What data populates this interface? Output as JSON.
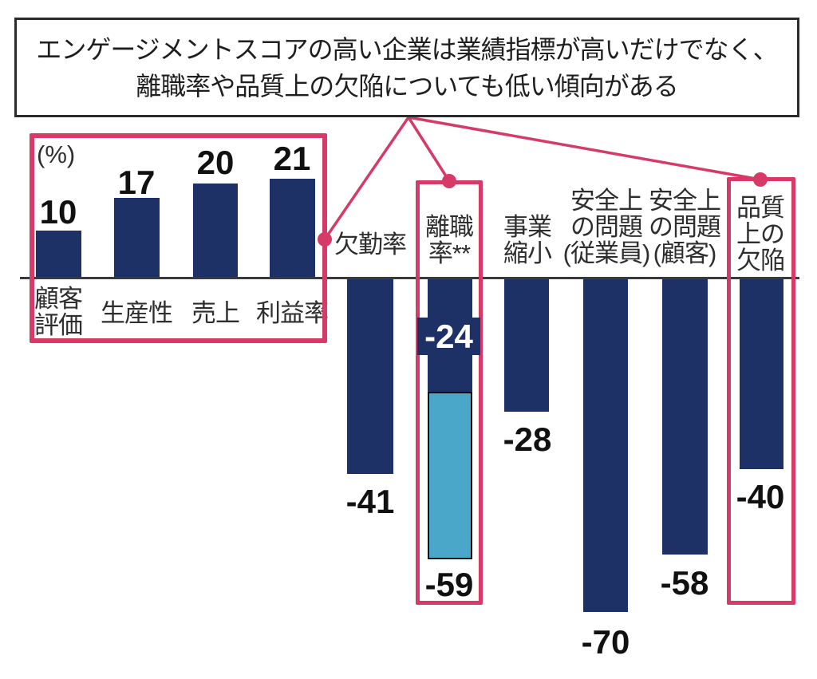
{
  "title": {
    "lines": [
      "エンゲージメントスコアの高い企業は業績指標が高いだけでなく、",
      "離職率や品質上の欠陥についても低い傾向がある"
    ]
  },
  "chart_data": {
    "type": "bar",
    "title": "エンゲージメントスコアの高い企業は業績指標が高いだけでなく、離職率や品質上の欠陥についても低い傾向がある",
    "unit_label": "(%)",
    "ylim": [
      -70,
      21
    ],
    "baseline": 0,
    "grid": false,
    "legend": "none",
    "positive_bars": [
      {
        "label": "顧客評価",
        "label_lines": [
          "顧客",
          "評価"
        ],
        "value": 10,
        "value_label": "10"
      },
      {
        "label": "生産性",
        "label_lines": [
          "生産性"
        ],
        "value": 17,
        "value_label": "17"
      },
      {
        "label": "売上",
        "label_lines": [
          "売上"
        ],
        "value": 20,
        "value_label": "20"
      },
      {
        "label": "利益率",
        "label_lines": [
          "利益率"
        ],
        "value": 21,
        "value_label": "21"
      }
    ],
    "negative_bars": [
      {
        "label": "欠勤率",
        "label_lines": [
          "欠勤率"
        ],
        "value": -41,
        "value_label": "-41"
      },
      {
        "label": "離職率**",
        "label_lines": [
          "離職",
          "率**"
        ],
        "value": -59,
        "value_label": "-59",
        "stacked_segment": {
          "value": -24,
          "value_label": "-24"
        }
      },
      {
        "label": "事業縮小",
        "label_lines": [
          "事業",
          "縮小"
        ],
        "value": -28,
        "value_label": "-28"
      },
      {
        "label": "安全上の問題(従業員)",
        "label_lines": [
          "安全上",
          "の問題",
          "(従業員)"
        ],
        "value": -70,
        "value_label": "-70"
      },
      {
        "label": "安全上の問題(顧客)",
        "label_lines": [
          "安全上",
          "の問題",
          "(顧客)"
        ],
        "value": -58,
        "value_label": "-58"
      },
      {
        "label": "品質上の欠陥",
        "label_lines": [
          "品質",
          "上の",
          "欠陥"
        ],
        "value": -40,
        "value_label": "-40"
      }
    ],
    "highlighted": [
      "業績指標グループ(顧客評価・生産性・売上・利益率)",
      "離職率**",
      "品質上の欠陥"
    ],
    "colors": {
      "navy": "#1e3166",
      "light_blue": "#4ba7ca",
      "highlight_pink": "#d63a66"
    }
  }
}
